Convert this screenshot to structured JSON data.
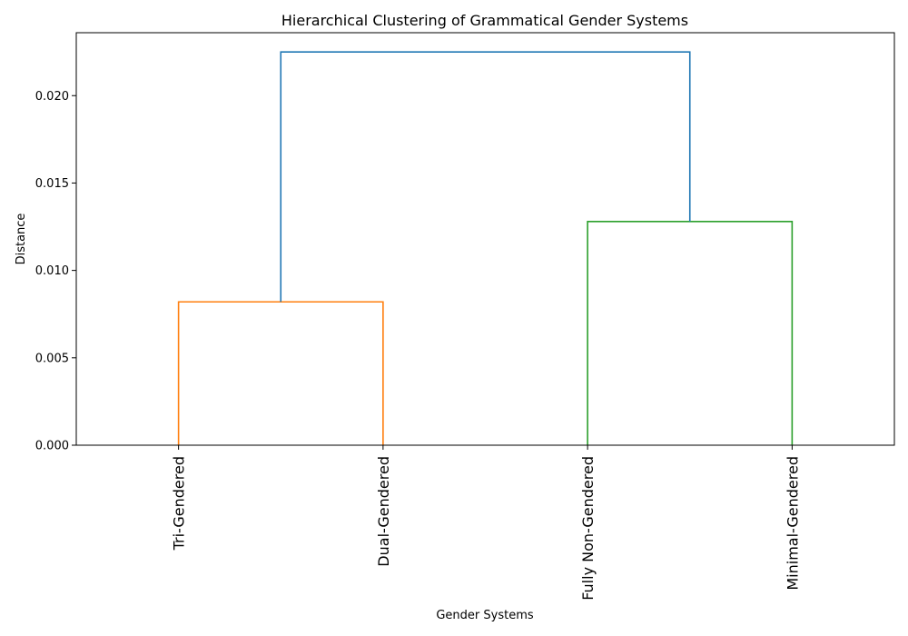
{
  "chart_data": {
    "type": "dendrogram",
    "title": "Hierarchical Clustering of Grammatical Gender Systems",
    "xlabel": "Gender Systems",
    "ylabel": "Distance",
    "ylim": [
      0,
      0.0236
    ],
    "yticks": [
      0.0,
      0.005,
      0.01,
      0.015,
      0.02
    ],
    "ytick_labels": [
      "0.000",
      "0.005",
      "0.010",
      "0.015",
      "0.020"
    ],
    "leaves": [
      "Tri-Gendered",
      "Dual-Gendered",
      "Fully Non-Gendered",
      "Minimal-Gendered"
    ],
    "links": [
      {
        "left": 0,
        "right": 1,
        "height": 0.0082,
        "color": "#ff7f0e",
        "left_height": 0,
        "right_height": 0
      },
      {
        "left": 2,
        "right": 3,
        "height": 0.0128,
        "color": "#2ca02c",
        "left_height": 0,
        "right_height": 0
      },
      {
        "left": 0.5,
        "right": 2.5,
        "height": 0.0225,
        "color": "#1f77b4",
        "left_height": 0.0082,
        "right_height": 0.0128
      }
    ],
    "grid": false
  }
}
